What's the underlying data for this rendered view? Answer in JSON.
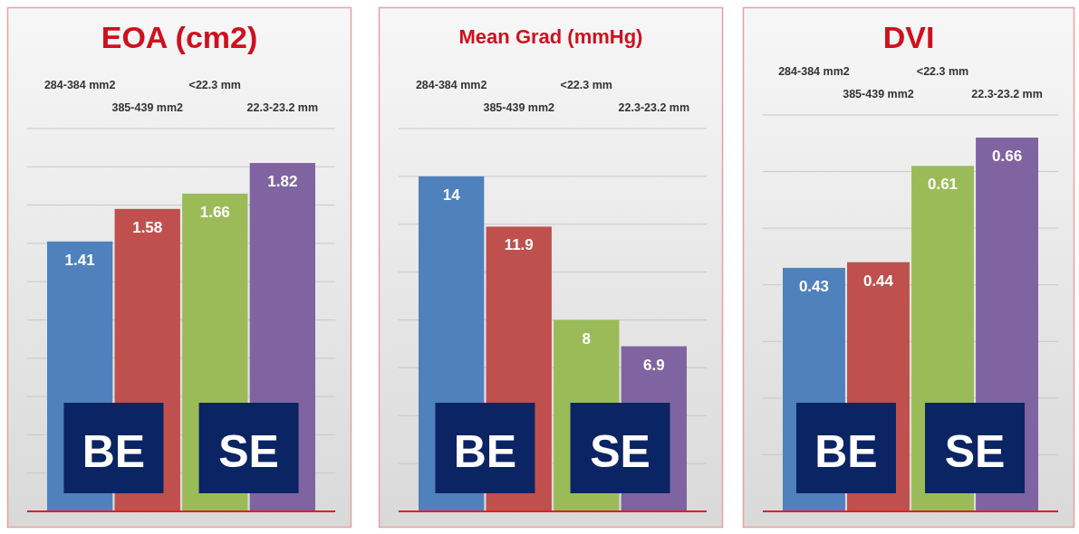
{
  "chart_data": [
    {
      "type": "bar",
      "title": "EOA (cm2)",
      "categories": [
        "284-384 mm2",
        "385-439 mm2",
        "<22.3 mm",
        "22.3-23.2 mm"
      ],
      "values": [
        1.41,
        1.58,
        1.66,
        1.82
      ],
      "colors": [
        "#4f81bd",
        "#c0504d",
        "#9bbb59",
        "#8064a2"
      ],
      "data_labels": true,
      "ylim": [
        0,
        2.0
      ],
      "yticks": [
        {
          "value": 0,
          "label": null
        },
        {
          "value": 0.2,
          "label": null
        },
        {
          "value": 0.4,
          "label": null
        },
        {
          "value": 0.6,
          "label": null
        },
        {
          "value": 0.8,
          "label": null
        },
        {
          "value": 1.0,
          "label": null
        },
        {
          "value": 1.2,
          "label": null
        },
        {
          "value": 1.4,
          "label": null
        },
        {
          "value": 1.6,
          "label": null
        },
        {
          "value": 1.8,
          "label": null
        },
        {
          "value": 2.0,
          "label": null
        }
      ],
      "grid": "y",
      "annotations": [
        "BE",
        "SE"
      ]
    },
    {
      "type": "bar",
      "title": "Mean Grad (mmHg)",
      "categories": [
        "284-384 mm2",
        "385-439 mm2",
        "<22.3 mm",
        "22.3-23.2 mm"
      ],
      "values": [
        14,
        11.9,
        8,
        6.9
      ],
      "colors": [
        "#4f81bd",
        "#c0504d",
        "#9bbb59",
        "#8064a2"
      ],
      "data_labels": true,
      "ylim": [
        0,
        16
      ],
      "yticks": [
        {
          "value": 0,
          "label": null
        },
        {
          "value": 2,
          "label": null
        },
        {
          "value": 4,
          "label": null
        },
        {
          "value": 6,
          "label": null
        },
        {
          "value": 8,
          "label": null
        },
        {
          "value": 10,
          "label": null
        },
        {
          "value": 12,
          "label": null
        },
        {
          "value": 14,
          "label": null
        },
        {
          "value": 16,
          "label": null
        }
      ],
      "grid": "y",
      "annotations": [
        "BE",
        "SE"
      ]
    },
    {
      "type": "bar",
      "title": "DVI",
      "categories": [
        "284-384 mm2",
        "385-439 mm2",
        "<22.3 mm",
        "22.3-23.2 mm"
      ],
      "values": [
        0.43,
        0.44,
        0.61,
        0.66
      ],
      "colors": [
        "#4f81bd",
        "#c0504d",
        "#9bbb59",
        "#8064a2"
      ],
      "data_labels": true,
      "ylim": [
        0,
        0.7
      ],
      "yticks": [
        {
          "value": 0,
          "label": null
        },
        {
          "value": 0.1,
          "label": null
        },
        {
          "value": 0.2,
          "label": null
        },
        {
          "value": 0.3,
          "label": null
        },
        {
          "value": 0.4,
          "label": null
        },
        {
          "value": 0.5,
          "label": null
        },
        {
          "value": 0.6,
          "label": null
        },
        {
          "value": 0.7,
          "label": null
        }
      ],
      "grid": "y",
      "annotations": [
        "BE",
        "SE"
      ]
    }
  ]
}
